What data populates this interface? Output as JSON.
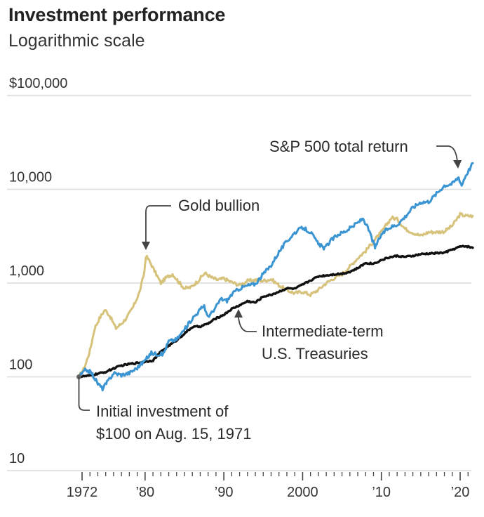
{
  "chart_data": {
    "type": "line",
    "title": "Investment performance",
    "subtitle": "Logarithmic scale",
    "yscale": "log",
    "ylim": [
      10,
      100000
    ],
    "xlim": [
      1971.6,
      2021.6
    ],
    "y_ticks": [
      {
        "value": 100000,
        "label": "$100,000"
      },
      {
        "value": 10000,
        "label": "10,000"
      },
      {
        "value": 1000,
        "label": "1,000"
      },
      {
        "value": 100,
        "label": "100"
      },
      {
        "value": 10,
        "label": "10"
      }
    ],
    "x_ticks": [
      {
        "value": 1972,
        "label": "1972"
      },
      {
        "value": 1980,
        "label": "’80"
      },
      {
        "value": 1990,
        "label": "’90"
      },
      {
        "value": 2000,
        "label": "2000"
      },
      {
        "value": 2010,
        "label": "’10"
      },
      {
        "value": 2020,
        "label": "’20"
      }
    ],
    "series": [
      {
        "name": "Gold bullion",
        "color": "#d6c27a",
        "points": [
          [
            1971.6,
            100
          ],
          [
            1972.3,
            125
          ],
          [
            1973.0,
            190
          ],
          [
            1973.6,
            330
          ],
          [
            1974.2,
            420
          ],
          [
            1974.9,
            520
          ],
          [
            1975.5,
            450
          ],
          [
            1976.3,
            330
          ],
          [
            1977.0,
            370
          ],
          [
            1977.7,
            430
          ],
          [
            1978.5,
            560
          ],
          [
            1979.3,
            800
          ],
          [
            1979.9,
            1300
          ],
          [
            1980.1,
            1950
          ],
          [
            1980.5,
            1750
          ],
          [
            1981.2,
            1350
          ],
          [
            1982.0,
            1000
          ],
          [
            1982.7,
            1150
          ],
          [
            1983.5,
            1250
          ],
          [
            1984.3,
            1020
          ],
          [
            1985.0,
            880
          ],
          [
            1985.8,
            900
          ],
          [
            1986.7,
            1050
          ],
          [
            1987.6,
            1280
          ],
          [
            1988.4,
            1150
          ],
          [
            1989.2,
            1080
          ],
          [
            1990.0,
            1120
          ],
          [
            1991.0,
            1020
          ],
          [
            1992.0,
            950
          ],
          [
            1993.0,
            1050
          ],
          [
            1994.0,
            1080
          ],
          [
            1995.0,
            1060
          ],
          [
            1996.0,
            1100
          ],
          [
            1997.0,
            950
          ],
          [
            1998.0,
            840
          ],
          [
            1999.0,
            780
          ],
          [
            2000.0,
            810
          ],
          [
            2001.0,
            750
          ],
          [
            2002.0,
            850
          ],
          [
            2003.0,
            1000
          ],
          [
            2004.0,
            1130
          ],
          [
            2005.0,
            1250
          ],
          [
            2006.0,
            1500
          ],
          [
            2007.0,
            1850
          ],
          [
            2008.0,
            2200
          ],
          [
            2009.0,
            2800
          ],
          [
            2010.0,
            3500
          ],
          [
            2011.3,
            5000
          ],
          [
            2012.0,
            4800
          ],
          [
            2013.0,
            3800
          ],
          [
            2014.0,
            3450
          ],
          [
            2015.0,
            3200
          ],
          [
            2016.0,
            3500
          ],
          [
            2017.0,
            3500
          ],
          [
            2018.0,
            3550
          ],
          [
            2019.0,
            4100
          ],
          [
            2020.0,
            5400
          ],
          [
            2020.7,
            5200
          ],
          [
            2021.6,
            5200
          ]
        ]
      },
      {
        "name": "S&P 500 total return",
        "color": "#3c95d3",
        "points": [
          [
            1971.6,
            100
          ],
          [
            1972.5,
            120
          ],
          [
            1973.2,
            110
          ],
          [
            1974.0,
            85
          ],
          [
            1974.6,
            75
          ],
          [
            1975.3,
            90
          ],
          [
            1976.0,
            110
          ],
          [
            1977.0,
            105
          ],
          [
            1978.0,
            110
          ],
          [
            1979.0,
            125
          ],
          [
            1980.0,
            150
          ],
          [
            1980.8,
            180
          ],
          [
            1981.5,
            175
          ],
          [
            1982.3,
            175
          ],
          [
            1983.0,
            240
          ],
          [
            1984.0,
            250
          ],
          [
            1985.0,
            320
          ],
          [
            1986.0,
            420
          ],
          [
            1987.5,
            580
          ],
          [
            1987.9,
            440
          ],
          [
            1988.7,
            500
          ],
          [
            1989.6,
            680
          ],
          [
            1990.4,
            650
          ],
          [
            1991.0,
            760
          ],
          [
            1992.0,
            880
          ],
          [
            1993.0,
            940
          ],
          [
            1994.0,
            980
          ],
          [
            1995.0,
            1250
          ],
          [
            1996.0,
            1550
          ],
          [
            1997.0,
            2150
          ],
          [
            1998.0,
            2800
          ],
          [
            1999.0,
            3450
          ],
          [
            2000.0,
            3900
          ],
          [
            2001.0,
            3500
          ],
          [
            2002.0,
            2600
          ],
          [
            2002.8,
            2350
          ],
          [
            2003.5,
            2800
          ],
          [
            2004.5,
            3300
          ],
          [
            2005.5,
            3600
          ],
          [
            2006.5,
            4100
          ],
          [
            2007.7,
            4900
          ],
          [
            2008.5,
            3500
          ],
          [
            2009.2,
            2400
          ],
          [
            2010.0,
            3300
          ],
          [
            2011.0,
            3900
          ],
          [
            2012.0,
            4200
          ],
          [
            2013.0,
            5100
          ],
          [
            2014.0,
            6400
          ],
          [
            2015.0,
            7300
          ],
          [
            2016.0,
            7400
          ],
          [
            2017.0,
            9000
          ],
          [
            2018.0,
            11000
          ],
          [
            2019.0,
            11500
          ],
          [
            2019.8,
            13500
          ],
          [
            2020.2,
            11000
          ],
          [
            2020.6,
            13500
          ],
          [
            2021.6,
            19000
          ]
        ]
      },
      {
        "name": "Intermediate-term U.S. Treasuries",
        "color": "#111111",
        "points": [
          [
            1971.6,
            100
          ],
          [
            1973.0,
            103
          ],
          [
            1974.0,
            108
          ],
          [
            1975.0,
            113
          ],
          [
            1976.0,
            123
          ],
          [
            1977.0,
            132
          ],
          [
            1978.0,
            137
          ],
          [
            1979.0,
            141
          ],
          [
            1980.0,
            145
          ],
          [
            1981.0,
            150
          ],
          [
            1982.0,
            185
          ],
          [
            1983.0,
            215
          ],
          [
            1984.0,
            245
          ],
          [
            1985.0,
            290
          ],
          [
            1986.0,
            340
          ],
          [
            1987.0,
            345
          ],
          [
            1988.0,
            370
          ],
          [
            1989.0,
            420
          ],
          [
            1990.0,
            460
          ],
          [
            1991.0,
            530
          ],
          [
            1992.0,
            580
          ],
          [
            1993.0,
            640
          ],
          [
            1994.0,
            620
          ],
          [
            1995.0,
            720
          ],
          [
            1996.0,
            750
          ],
          [
            1997.0,
            810
          ],
          [
            1998.0,
            880
          ],
          [
            1999.0,
            870
          ],
          [
            2000.0,
            960
          ],
          [
            2001.0,
            1070
          ],
          [
            2002.0,
            1180
          ],
          [
            2003.0,
            1210
          ],
          [
            2004.0,
            1240
          ],
          [
            2005.0,
            1260
          ],
          [
            2006.0,
            1320
          ],
          [
            2007.0,
            1440
          ],
          [
            2008.0,
            1640
          ],
          [
            2009.0,
            1610
          ],
          [
            2010.0,
            1760
          ],
          [
            2011.0,
            1880
          ],
          [
            2012.0,
            1950
          ],
          [
            2013.0,
            1900
          ],
          [
            2014.0,
            1950
          ],
          [
            2015.0,
            2030
          ],
          [
            2016.0,
            2060
          ],
          [
            2017.0,
            2090
          ],
          [
            2018.0,
            2110
          ],
          [
            2019.0,
            2280
          ],
          [
            2020.0,
            2450
          ],
          [
            2020.8,
            2470
          ],
          [
            2021.6,
            2380
          ]
        ]
      }
    ],
    "annotations": [
      {
        "series": "Gold bullion",
        "text": [
          "Gold bullion"
        ]
      },
      {
        "series": "S&P 500 total return",
        "text": [
          "S&P 500 total return"
        ]
      },
      {
        "series": "Intermediate-term U.S. Treasuries",
        "text": [
          "Intermediate-term",
          "U.S. Treasuries"
        ]
      },
      {
        "series": "Initial investment",
        "text": [
          "Initial investment of",
          "$100 on Aug. 15, 1971"
        ]
      }
    ]
  }
}
